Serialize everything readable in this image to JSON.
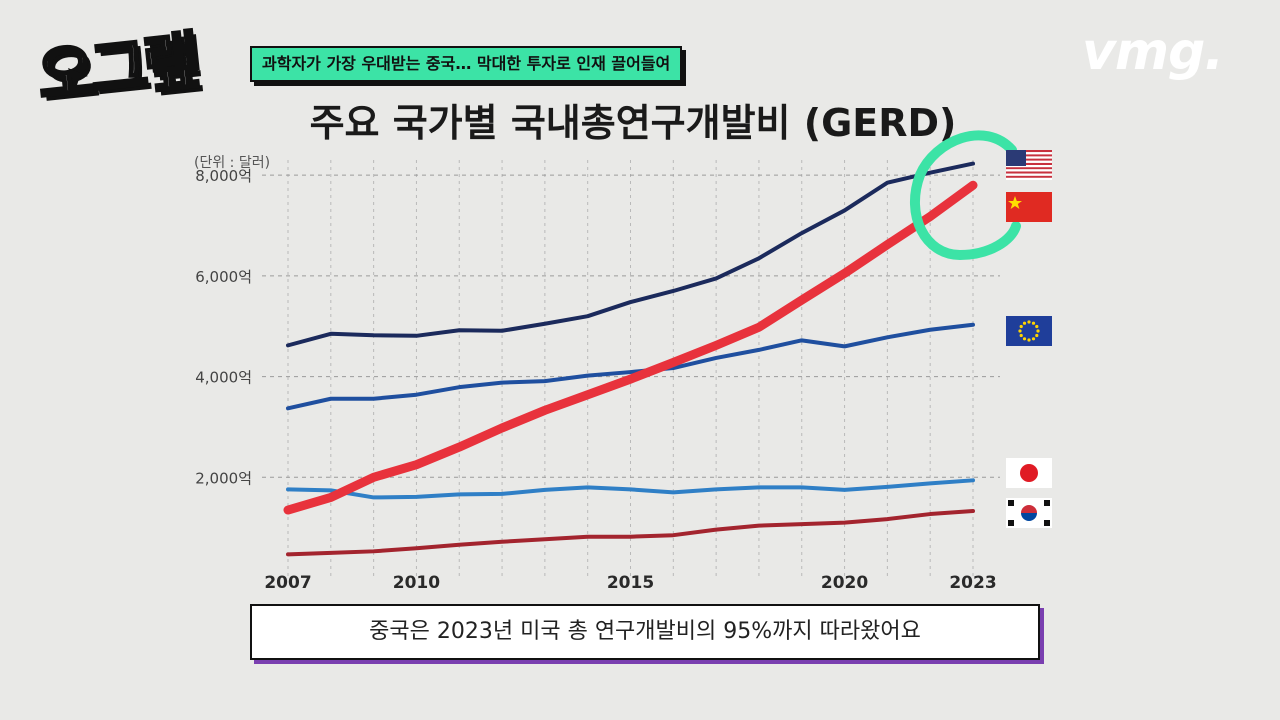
{
  "header": {
    "logo_text": "오그랲",
    "banner": "과학자가 가장 우대받는 중국… 막대한 투자로 인재 끌어들여",
    "brand": "vmg."
  },
  "caption": "중국은 2023년 미국 총 연구개발비의 95%까지 따라왔어요",
  "chart_data": {
    "type": "line",
    "title": "주요 국가별 국내총연구개발비 (GERD)",
    "unit_label": "(단위 : 달러)",
    "x_tick_labels": [
      "2007",
      "2010",
      "2015",
      "2020",
      "2023"
    ],
    "y_tick_labels": [
      "2,000억",
      "4,000억",
      "6,000억",
      "8,000억"
    ],
    "y_ticks": [
      2000,
      4000,
      6000,
      8000
    ],
    "ylim": [
      0,
      8500
    ],
    "xlim": [
      2007,
      2023
    ],
    "grid": true,
    "x": [
      2007,
      2008,
      2009,
      2010,
      2011,
      2012,
      2013,
      2014,
      2015,
      2016,
      2017,
      2018,
      2019,
      2020,
      2021,
      2022,
      2023
    ],
    "series": [
      {
        "flag": "us-flag",
        "color": "#1b2a5c",
        "values": [
          4620,
          4850,
          4820,
          4810,
          4920,
          4910,
          5050,
          5200,
          5480,
          5700,
          5950,
          6350,
          6850,
          7300,
          7850,
          8050,
          8230
        ]
      },
      {
        "flag": "eu-flag",
        "color": "#1f4f9f",
        "values": [
          3370,
          3560,
          3560,
          3640,
          3790,
          3880,
          3910,
          4020,
          4090,
          4170,
          4370,
          4530,
          4720,
          4600,
          4780,
          4930,
          5030
        ]
      },
      {
        "flag": "cn-flag",
        "color": "#e8323c",
        "values": [
          1350,
          1600,
          2000,
          2250,
          2600,
          2980,
          3330,
          3640,
          3950,
          4280,
          4620,
          4980,
          5520,
          6050,
          6620,
          7180,
          7800
        ]
      },
      {
        "flag": "jp-flag",
        "color": "#2f7fc6",
        "values": [
          1760,
          1740,
          1600,
          1610,
          1660,
          1670,
          1750,
          1800,
          1760,
          1700,
          1760,
          1800,
          1800,
          1750,
          1810,
          1880,
          1940
        ]
      },
      {
        "flag": "kr-flag",
        "color": "#a3242e",
        "values": [
          470,
          500,
          530,
          590,
          660,
          720,
          770,
          820,
          820,
          850,
          960,
          1040,
          1070,
          1100,
          1170,
          1270,
          1330
        ]
      }
    ],
    "highlight": "2023 China vs US"
  }
}
